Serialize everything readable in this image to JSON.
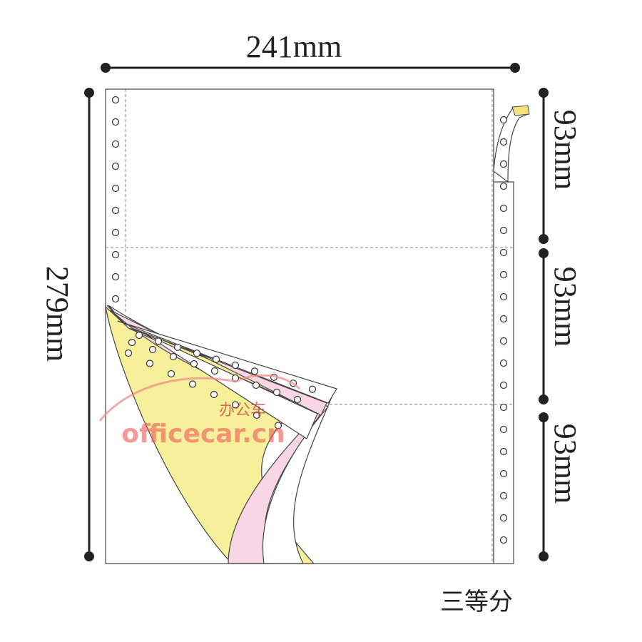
{
  "dimensions": {
    "width": "241mm",
    "height": "279mm",
    "sections": [
      "93mm",
      "93mm",
      "93mm"
    ]
  },
  "caption": "三等分",
  "watermark": {
    "brand": "办公车",
    "site": "officecar.cn"
  }
}
